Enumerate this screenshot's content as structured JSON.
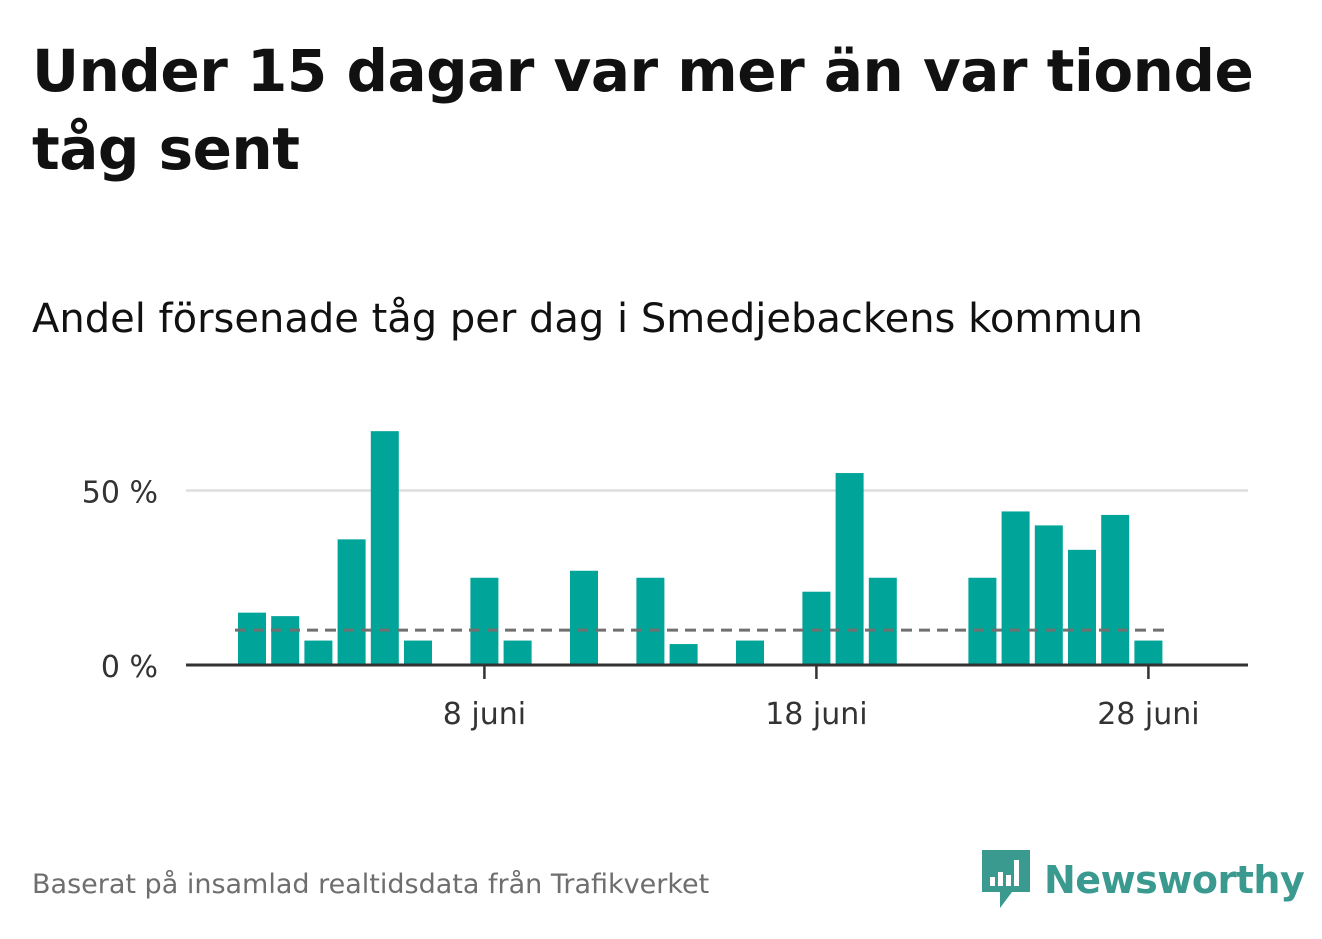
{
  "title": "Under 15 dagar var mer än var tionde tåg sent",
  "subtitle": "Andel försenade tåg per dag i Smedjebackens kommun",
  "footer": "Baserat på insamlad realtidsdata från Trafikverket",
  "brand": {
    "name": "Newsworthy",
    "icon": "newsworthy-logo-icon",
    "color": "#3a9a8f"
  },
  "colors": {
    "bar": "#00a499",
    "reference": "#707070",
    "axis": "#333333",
    "grid": "#dddddd"
  },
  "chart_data": {
    "type": "bar",
    "x_start_day": 1,
    "x_end_day": 30,
    "month_label": "juni",
    "x_ticks": [
      {
        "day": 8,
        "label": "8 juni"
      },
      {
        "day": 18,
        "label": "18 juni"
      },
      {
        "day": 28,
        "label": "28 juni"
      }
    ],
    "y_ticks": [
      {
        "value": 0,
        "label": "0 %"
      },
      {
        "value": 50,
        "label": "50 %"
      }
    ],
    "ylim": [
      0,
      70
    ],
    "reference_line": 10,
    "grid": true,
    "days": [
      {
        "day": 1,
        "value": 15
      },
      {
        "day": 2,
        "value": 14
      },
      {
        "day": 3,
        "value": 7
      },
      {
        "day": 4,
        "value": 36
      },
      {
        "day": 5,
        "value": 67
      },
      {
        "day": 6,
        "value": 7
      },
      {
        "day": 7,
        "value": 0
      },
      {
        "day": 8,
        "value": 25
      },
      {
        "day": 9,
        "value": 7
      },
      {
        "day": 10,
        "value": 0
      },
      {
        "day": 11,
        "value": 27
      },
      {
        "day": 12,
        "value": 0
      },
      {
        "day": 13,
        "value": 25
      },
      {
        "day": 14,
        "value": 6
      },
      {
        "day": 15,
        "value": 0
      },
      {
        "day": 16,
        "value": 7
      },
      {
        "day": 17,
        "value": 0
      },
      {
        "day": 18,
        "value": 21
      },
      {
        "day": 19,
        "value": 55
      },
      {
        "day": 20,
        "value": 25
      },
      {
        "day": 21,
        "value": 0
      },
      {
        "day": 22,
        "value": 0
      },
      {
        "day": 23,
        "value": 25
      },
      {
        "day": 24,
        "value": 44
      },
      {
        "day": 25,
        "value": 40
      },
      {
        "day": 26,
        "value": 33
      },
      {
        "day": 27,
        "value": 43
      },
      {
        "day": 28,
        "value": 7
      }
    ]
  }
}
